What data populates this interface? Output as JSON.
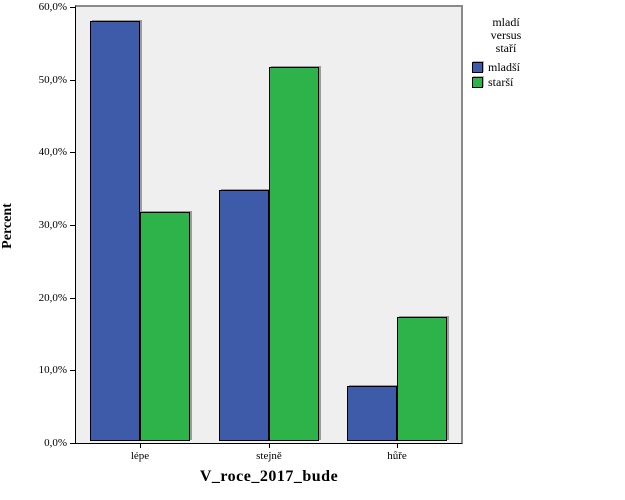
{
  "figure": {
    "background_color": "#ffffff",
    "plot_background_color": "#efefef",
    "frame_color": "#8a8a8a",
    "axis_color": "#000000",
    "bar_border_color": "#000000",
    "bar_shadow_color": "#9b9b9b"
  },
  "chart_data": {
    "type": "bar",
    "title": "",
    "xlabel": "V_roce_2017_bude",
    "ylabel": "Percent",
    "categories": [
      "lépe",
      "stejně",
      "hůře"
    ],
    "series": [
      {
        "name": "mladší",
        "color": "#3e5ba9",
        "values": [
          57.8,
          34.6,
          7.6
        ]
      },
      {
        "name": "starší",
        "color": "#2eb34a",
        "values": [
          31.5,
          51.5,
          17.1
        ]
      }
    ],
    "ylim": [
      0,
      60
    ],
    "ytick_values": [
      0,
      10,
      20,
      30,
      40,
      50,
      60
    ],
    "ytick_labels": [
      "0,0%",
      "10,0%",
      "20,0%",
      "30,0%",
      "40,0%",
      "50,0%",
      "60,0%"
    ],
    "grid": false,
    "legend": {
      "position": "right",
      "title_lines": [
        "mladí",
        "versus",
        "staří"
      ]
    }
  }
}
